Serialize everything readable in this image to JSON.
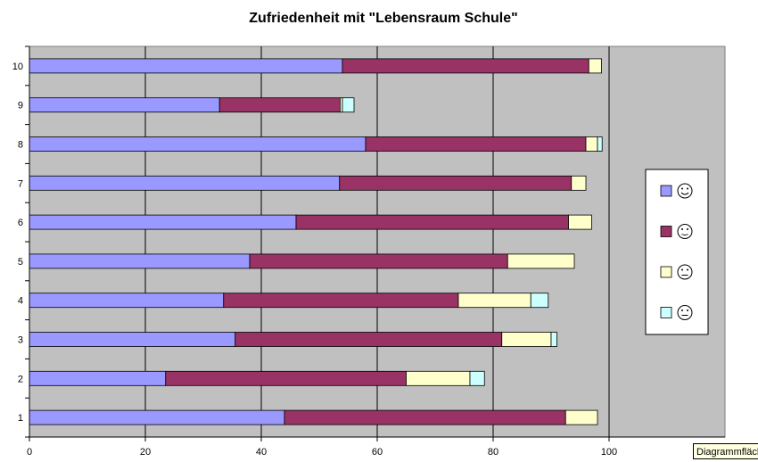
{
  "chart_data": {
    "type": "bar",
    "orientation": "horizontal",
    "stacked": true,
    "title": "Zufriedenheit mit \"Lebensraum Schule\"",
    "xlabel": "",
    "ylabel": "",
    "xlim": [
      0,
      120
    ],
    "x_ticks": [
      0,
      20,
      40,
      60,
      80,
      100
    ],
    "categories": [
      "1",
      "2",
      "3",
      "4",
      "5",
      "6",
      "7",
      "8",
      "9",
      "10"
    ],
    "series": [
      {
        "legend_icon": "happy-face",
        "color": "#9999ff",
        "values": [
          44,
          23.5,
          35.5,
          33.5,
          38,
          46,
          53.5,
          58,
          32.8,
          54
        ]
      },
      {
        "legend_icon": "smiling-face",
        "color": "#993366",
        "values": [
          48.5,
          41.5,
          46,
          40.5,
          44.5,
          47,
          40,
          38,
          20.8,
          42.5
        ]
      },
      {
        "legend_icon": "neutral-face",
        "color": "#ffffcc",
        "values": [
          5.5,
          11,
          8.5,
          12.5,
          11.5,
          4,
          2.5,
          2,
          0.4,
          2.2
        ]
      },
      {
        "legend_icon": "unhappy-face",
        "color": "#ccffff",
        "values": [
          0,
          2.5,
          1,
          3,
          0,
          0,
          0,
          0.8,
          2,
          0
        ]
      }
    ],
    "grid": true,
    "legend_position": "right",
    "plot_background": "#c0c0c0"
  },
  "tooltip": {
    "text": "Diagrammfläche"
  }
}
